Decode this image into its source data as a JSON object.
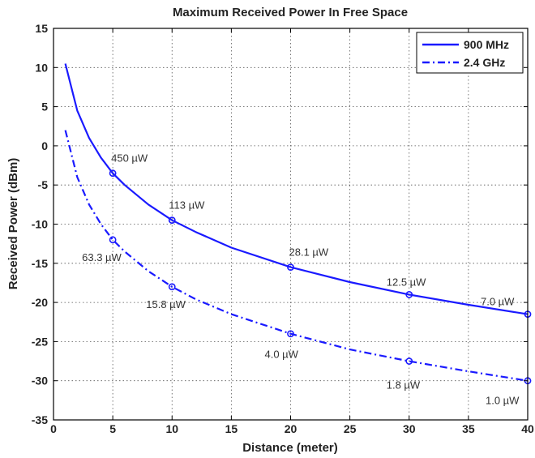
{
  "chart_data": {
    "type": "line",
    "title": "Maximum Received Power In Free Space",
    "xlabel": "Distance (meter)",
    "ylabel": "Received Power (dBm)",
    "xlim": [
      0,
      40
    ],
    "ylim": [
      -35,
      15
    ],
    "xticks": [
      "0",
      "5",
      "10",
      "15",
      "20",
      "25",
      "30",
      "35",
      "40"
    ],
    "yticks": [
      "15",
      "10",
      "5",
      "0",
      "-5",
      "-10",
      "-15",
      "-20",
      "-25",
      "-30",
      "-35"
    ],
    "grid": true,
    "legend_position": "top-right",
    "series": [
      {
        "name": "900 MHz",
        "style": "solid",
        "color": "#1a1aff",
        "x": [
          1,
          2,
          3,
          4,
          5,
          6,
          8,
          10,
          12,
          15,
          20,
          25,
          30,
          35,
          40
        ],
        "y": [
          10.5,
          4.5,
          1.0,
          -1.5,
          -3.5,
          -5.0,
          -7.5,
          -9.5,
          -11.0,
          -13.0,
          -15.5,
          -17.4,
          -19.0,
          -20.3,
          -21.5
        ],
        "markers": [
          {
            "x": 5,
            "y": -3.5,
            "label": "450 µW"
          },
          {
            "x": 10,
            "y": -9.5,
            "label": "113 µW"
          },
          {
            "x": 20,
            "y": -15.5,
            "label": "28.1 µW"
          },
          {
            "x": 30,
            "y": -19.0,
            "label": "12.5 µW"
          },
          {
            "x": 40,
            "y": -21.5,
            "label": "7.0 µW"
          }
        ]
      },
      {
        "name": "2.4 GHz",
        "style": "dash-dot",
        "color": "#1a1aff",
        "x": [
          1,
          2,
          3,
          4,
          5,
          6,
          8,
          10,
          12,
          15,
          20,
          25,
          30,
          35,
          40
        ],
        "y": [
          2.0,
          -4.0,
          -7.5,
          -10.0,
          -12.0,
          -13.5,
          -16.0,
          -18.0,
          -19.6,
          -21.5,
          -24.0,
          -26.0,
          -27.5,
          -28.8,
          -30.0
        ],
        "markers": [
          {
            "x": 5,
            "y": -12.0,
            "label": "63.3 µW"
          },
          {
            "x": 10,
            "y": -18.0,
            "label": "15.8 µW"
          },
          {
            "x": 20,
            "y": -24.0,
            "label": "4.0 µW"
          },
          {
            "x": 30,
            "y": -27.5,
            "label": "1.8 µW"
          },
          {
            "x": 40,
            "y": -30.0,
            "label": "1.0 µW"
          }
        ]
      }
    ]
  }
}
